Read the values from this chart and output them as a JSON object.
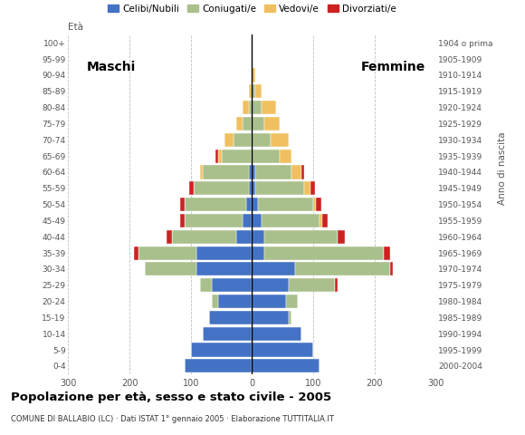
{
  "age_groups": [
    "0-4",
    "5-9",
    "10-14",
    "15-19",
    "20-24",
    "25-29",
    "30-34",
    "35-39",
    "40-44",
    "45-49",
    "50-54",
    "55-59",
    "60-64",
    "65-69",
    "70-74",
    "75-79",
    "80-84",
    "85-89",
    "90-94",
    "95-99",
    "100+"
  ],
  "birth_years": [
    "2000-2004",
    "1995-1999",
    "1990-1994",
    "1985-1989",
    "1980-1984",
    "1975-1979",
    "1970-1974",
    "1965-1969",
    "1960-1964",
    "1955-1959",
    "1950-1954",
    "1945-1949",
    "1940-1944",
    "1935-1939",
    "1930-1934",
    "1925-1929",
    "1920-1924",
    "1915-1919",
    "1910-1914",
    "1905-1909",
    "1904 o prima"
  ],
  "colors": {
    "celibe": "#4472c4",
    "coniugato": "#a9c08c",
    "vedovo": "#f0c060",
    "divorziato": "#cc2222"
  },
  "maschi": {
    "celibe": [
      110,
      100,
      80,
      70,
      55,
      65,
      90,
      90,
      25,
      15,
      10,
      5,
      5,
      0,
      0,
      0,
      0,
      0,
      0,
      0,
      0
    ],
    "coniugato": [
      0,
      0,
      0,
      0,
      10,
      20,
      85,
      95,
      105,
      95,
      100,
      90,
      75,
      50,
      30,
      15,
      5,
      0,
      0,
      0,
      0
    ],
    "vedovo": [
      0,
      0,
      0,
      0,
      0,
      0,
      0,
      0,
      0,
      0,
      0,
      0,
      5,
      5,
      15,
      10,
      10,
      5,
      0,
      0,
      0
    ],
    "divorziato": [
      0,
      0,
      0,
      0,
      0,
      0,
      0,
      8,
      10,
      8,
      8,
      8,
      0,
      5,
      0,
      0,
      0,
      0,
      0,
      0,
      0
    ]
  },
  "femmine": {
    "celibe": [
      110,
      100,
      80,
      60,
      55,
      60,
      70,
      20,
      20,
      15,
      10,
      5,
      5,
      0,
      0,
      0,
      0,
      0,
      0,
      0,
      0
    ],
    "coniugato": [
      0,
      0,
      0,
      5,
      20,
      75,
      155,
      195,
      120,
      95,
      90,
      80,
      60,
      45,
      30,
      20,
      15,
      5,
      0,
      0,
      0
    ],
    "vedovo": [
      0,
      0,
      0,
      0,
      0,
      0,
      0,
      0,
      0,
      5,
      5,
      10,
      15,
      20,
      30,
      25,
      25,
      10,
      5,
      0,
      0
    ],
    "divorziato": [
      0,
      0,
      0,
      0,
      0,
      5,
      5,
      10,
      12,
      8,
      8,
      8,
      5,
      0,
      0,
      0,
      0,
      0,
      0,
      0,
      0
    ]
  },
  "title": "Popolazione per età, sesso e stato civile - 2005",
  "subtitle": "COMUNE DI BALLABIO (LC) · Dati ISTAT 1° gennaio 2005 · Elaborazione TUTTITALIA.IT",
  "xlabel_left": "Maschi",
  "xlabel_right": "Femmine",
  "ylabel": "Età",
  "ylabel_right": "Anno di nascita",
  "xlim": 300,
  "legend_labels": [
    "Celibi/Nubili",
    "Coniugati/e",
    "Vedovi/e",
    "Divorziati/e"
  ],
  "background_color": "#ffffff",
  "grid_color": "#c0c0c0"
}
